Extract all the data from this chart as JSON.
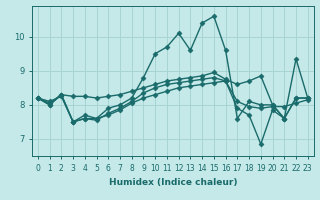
{
  "title": "",
  "xlabel": "Humidex (Indice chaleur)",
  "ylabel": "",
  "bg_color": "#c5e8e8",
  "grid_color": "#a8d4d4",
  "line_color": "#1a6b6b",
  "xlim": [
    -0.5,
    23.5
  ],
  "ylim": [
    6.5,
    10.9
  ],
  "xticks": [
    0,
    1,
    2,
    3,
    4,
    5,
    6,
    7,
    8,
    9,
    10,
    11,
    12,
    13,
    14,
    15,
    16,
    17,
    18,
    19,
    20,
    21,
    22,
    23
  ],
  "yticks": [
    7,
    8,
    9,
    10
  ],
  "series": [
    [
      8.2,
      8.0,
      8.3,
      7.5,
      7.7,
      7.6,
      7.9,
      8.0,
      8.2,
      8.8,
      9.5,
      9.7,
      10.1,
      9.6,
      10.4,
      10.6,
      9.6,
      7.6,
      8.1,
      8.0,
      8.0,
      7.6,
      8.2,
      8.2
    ],
    [
      8.2,
      8.05,
      8.3,
      8.25,
      8.25,
      8.2,
      8.25,
      8.3,
      8.4,
      8.5,
      8.6,
      8.7,
      8.75,
      8.8,
      8.85,
      8.95,
      8.75,
      8.6,
      8.7,
      8.85,
      8.0,
      7.6,
      8.2,
      8.2
    ],
    [
      8.2,
      8.0,
      8.3,
      7.5,
      7.6,
      7.55,
      7.75,
      7.9,
      8.1,
      8.35,
      8.5,
      8.6,
      8.65,
      8.7,
      8.75,
      8.8,
      8.7,
      8.1,
      7.95,
      7.9,
      7.95,
      7.95,
      8.05,
      8.15
    ],
    [
      8.2,
      8.1,
      8.25,
      7.5,
      7.6,
      7.6,
      7.7,
      7.85,
      8.05,
      8.2,
      8.3,
      8.4,
      8.5,
      8.55,
      8.6,
      8.65,
      8.7,
      7.9,
      7.7,
      6.85,
      7.85,
      7.6,
      9.35,
      8.2
    ]
  ],
  "marker": "D",
  "markersize": 2.5,
  "linewidth": 1.0,
  "tick_fontsize": 5.5,
  "xlabel_fontsize": 6.5
}
